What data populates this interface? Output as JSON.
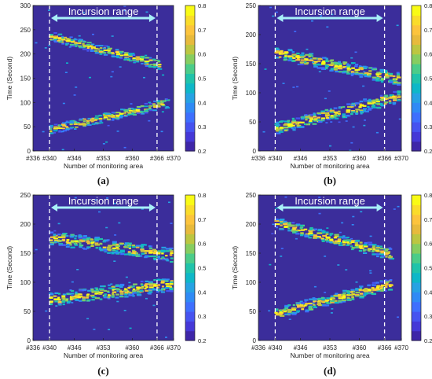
{
  "colormap": [
    "#3e26a8",
    "#4538d7",
    "#4653f0",
    "#3e6ffe",
    "#2f8af5",
    "#26a2e3",
    "#0eb7c8",
    "#20c3aa",
    "#4bcc89",
    "#86cd60",
    "#bcc641",
    "#e7ba3c",
    "#fcc43c",
    "#fadc2a",
    "#f9fb15"
  ],
  "background_color": "#3b2d9b",
  "banner_color": "#a8f0f8",
  "chart_data": [
    {
      "type": "heatmap",
      "panel_label": "(a)",
      "banner": "Incursion range",
      "xlabel": "Number of monitoring area",
      "ylabel": "Time (Second)",
      "x_ticks": [
        "#336",
        "#340",
        "#346",
        "#353",
        "#360",
        "#366",
        "#370"
      ],
      "x_tick_values": [
        336,
        340,
        346,
        353,
        360,
        366,
        370
      ],
      "xlim": [
        336,
        370
      ],
      "ylim": [
        0,
        300
      ],
      "y_ticks": [
        0,
        50,
        100,
        150,
        200,
        250,
        300
      ],
      "colorbar": {
        "range": [
          0.2,
          0.8
        ],
        "ticks": [
          "0.2",
          "0.3",
          "0.4",
          "0.5",
          "0.6",
          "0.7",
          "0.8"
        ]
      },
      "incursion_range": [
        340,
        366
      ],
      "tracks": [
        {
          "from": [
            340,
            238
          ],
          "to": [
            366,
            180
          ],
          "spread": 10
        },
        {
          "from": [
            340,
            45
          ],
          "to": [
            368,
            100
          ],
          "spread": 10
        }
      ]
    },
    {
      "type": "heatmap",
      "panel_label": "(b)",
      "banner": "Incursion range",
      "xlabel": "Number of monitoring area",
      "ylabel": "Time (Second)",
      "x_ticks": [
        "#336",
        "#340",
        "#346",
        "#353",
        "#360",
        "#366",
        "#370"
      ],
      "x_tick_values": [
        336,
        340,
        346,
        353,
        360,
        366,
        370
      ],
      "xlim": [
        336,
        370
      ],
      "ylim": [
        0,
        250
      ],
      "y_ticks": [
        0,
        50,
        100,
        150,
        200,
        250
      ],
      "colorbar": {
        "range": [
          0.2,
          0.8
        ],
        "ticks": [
          "0.2",
          "0.3",
          "0.4",
          "0.5",
          "0.6",
          "0.7",
          "0.8"
        ]
      },
      "incursion_range": [
        340,
        366
      ],
      "tracks": [
        {
          "from": [
            340,
            170
          ],
          "to": [
            369,
            125
          ],
          "spread": 11
        },
        {
          "from": [
            340,
            40
          ],
          "to": [
            369,
            95
          ],
          "spread": 11
        }
      ]
    },
    {
      "type": "heatmap",
      "panel_label": "(c)",
      "banner": "Incursion range",
      "xlabel": "Number of monitoring area",
      "ylabel": "Time (Second)",
      "x_ticks": [
        "#336",
        "#340",
        "#346",
        "#353",
        "#360",
        "#366",
        "#370"
      ],
      "x_tick_values": [
        336,
        340,
        346,
        353,
        360,
        366,
        370
      ],
      "xlim": [
        336,
        370
      ],
      "ylim": [
        0,
        250
      ],
      "y_ticks": [
        0,
        50,
        100,
        150,
        200,
        250
      ],
      "colorbar": {
        "range": [
          0.2,
          0.8
        ],
        "ticks": [
          "0.2",
          "0.3",
          "0.4",
          "0.5",
          "0.6",
          "0.7",
          "0.8"
        ]
      },
      "incursion_range": [
        340,
        366
      ],
      "tracks": [
        {
          "from": [
            340,
            178
          ],
          "to": [
            369,
            148
          ],
          "spread": 12
        },
        {
          "from": [
            340,
            72
          ],
          "to": [
            369,
            98
          ],
          "spread": 12
        }
      ]
    },
    {
      "type": "heatmap",
      "panel_label": "(d)",
      "banner": "Incursion range",
      "xlabel": "Number of monitoring area",
      "ylabel": "Time (Second)",
      "x_ticks": [
        "#336",
        "#340",
        "#346",
        "#353",
        "#360",
        "#366",
        "#370"
      ],
      "x_tick_values": [
        336,
        340,
        346,
        353,
        360,
        366,
        370
      ],
      "xlim": [
        336,
        370
      ],
      "ylim": [
        0,
        250
      ],
      "y_ticks": [
        0,
        50,
        100,
        150,
        200,
        250
      ],
      "colorbar": {
        "range": [
          0.2,
          0.8
        ],
        "ticks": [
          "0.2",
          "0.3",
          "0.4",
          "0.5",
          "0.6",
          "0.7",
          "0.8"
        ]
      },
      "incursion_range": [
        340,
        366
      ],
      "tracks": [
        {
          "from": [
            340,
            202
          ],
          "to": [
            367,
            150
          ],
          "spread": 10
        },
        {
          "from": [
            340,
            48
          ],
          "to": [
            367,
            98
          ],
          "spread": 10
        }
      ]
    }
  ]
}
